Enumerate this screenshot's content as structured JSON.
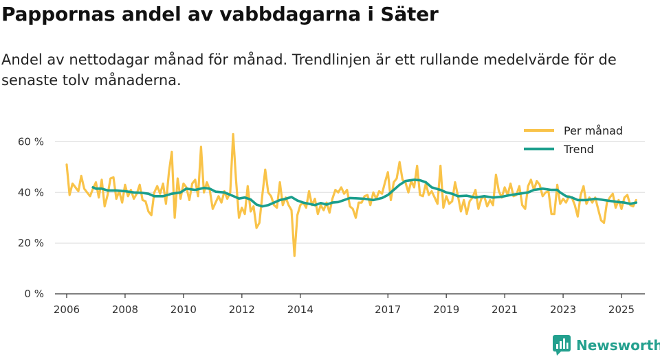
{
  "chart_data": {
    "type": "line",
    "title": "Pappornas andel av vabbdagarna i Säter",
    "subtitle": "Andel av nettodagar månad för månad. Trendlinjen är ett rullande medelvärde för de senaste tolv månaderna.",
    "xlabel": "",
    "ylabel": "",
    "ylim": [
      0,
      65
    ],
    "xlim": [
      2005.6,
      2025.8
    ],
    "y_ticks": [
      0,
      20,
      40,
      60
    ],
    "y_tick_labels": [
      "0 %",
      "20 %",
      "40 %",
      "60 %"
    ],
    "x_ticks": [
      2006,
      2008,
      2010,
      2012,
      2014,
      2017,
      2019,
      2021,
      2023,
      2025
    ],
    "x_tick_labels": [
      "2006",
      "2008",
      "2010",
      "2012",
      "2014",
      "2017",
      "2019",
      "2021",
      "2023",
      "2025"
    ],
    "grid": "horizontal",
    "legend_position": "top-right",
    "series": [
      {
        "name": "Per månad",
        "color": "#f9c349",
        "points": [
          [
            2006.0,
            51
          ],
          [
            2006.1,
            39
          ],
          [
            2006.2,
            43.5
          ],
          [
            2006.3,
            42
          ],
          [
            2006.4,
            40.5
          ],
          [
            2006.5,
            46.5
          ],
          [
            2006.6,
            41.5
          ],
          [
            2006.7,
            40
          ],
          [
            2006.8,
            38.5
          ],
          [
            2006.9,
            41.5
          ],
          [
            2007.0,
            44
          ],
          [
            2007.1,
            38
          ],
          [
            2007.2,
            45
          ],
          [
            2007.3,
            34.5
          ],
          [
            2007.4,
            39
          ],
          [
            2007.5,
            45.5
          ],
          [
            2007.6,
            46
          ],
          [
            2007.7,
            37.5
          ],
          [
            2007.8,
            40.5
          ],
          [
            2007.9,
            36
          ],
          [
            2008.0,
            43
          ],
          [
            2008.1,
            38.5
          ],
          [
            2008.2,
            41
          ],
          [
            2008.3,
            37.5
          ],
          [
            2008.4,
            39.5
          ],
          [
            2008.5,
            43
          ],
          [
            2008.6,
            37
          ],
          [
            2008.7,
            36.5
          ],
          [
            2008.8,
            32.5
          ],
          [
            2008.9,
            31
          ],
          [
            2009.0,
            40
          ],
          [
            2009.1,
            42.5
          ],
          [
            2009.2,
            39.5
          ],
          [
            2009.3,
            43.5
          ],
          [
            2009.4,
            35.5
          ],
          [
            2009.5,
            48
          ],
          [
            2009.6,
            56
          ],
          [
            2009.7,
            30
          ],
          [
            2009.8,
            45.5
          ],
          [
            2009.9,
            37.5
          ],
          [
            2010.0,
            43.5
          ],
          [
            2010.1,
            42
          ],
          [
            2010.2,
            37
          ],
          [
            2010.3,
            43.5
          ],
          [
            2010.4,
            45
          ],
          [
            2010.5,
            38.5
          ],
          [
            2010.6,
            58
          ],
          [
            2010.7,
            40
          ],
          [
            2010.8,
            44
          ],
          [
            2010.9,
            41
          ],
          [
            2011.0,
            33.5
          ],
          [
            2011.1,
            36
          ],
          [
            2011.2,
            38.5
          ],
          [
            2011.3,
            36
          ],
          [
            2011.4,
            40.5
          ],
          [
            2011.5,
            37.5
          ],
          [
            2011.6,
            40
          ],
          [
            2011.7,
            63
          ],
          [
            2011.8,
            45
          ],
          [
            2011.9,
            30
          ],
          [
            2012.0,
            34
          ],
          [
            2012.1,
            31.5
          ],
          [
            2012.2,
            42.5
          ],
          [
            2012.3,
            32.5
          ],
          [
            2012.4,
            34.5
          ],
          [
            2012.5,
            26
          ],
          [
            2012.6,
            28
          ],
          [
            2012.7,
            39
          ],
          [
            2012.8,
            49
          ],
          [
            2012.9,
            40
          ],
          [
            2013.0,
            38.5
          ],
          [
            2013.1,
            35
          ],
          [
            2013.2,
            34
          ],
          [
            2013.3,
            44
          ],
          [
            2013.4,
            35
          ],
          [
            2013.5,
            38
          ],
          [
            2013.6,
            35
          ],
          [
            2013.7,
            33
          ],
          [
            2013.8,
            15
          ],
          [
            2013.9,
            31
          ],
          [
            2014.0,
            35
          ],
          [
            2014.1,
            36
          ],
          [
            2014.2,
            34
          ],
          [
            2014.3,
            40.5
          ],
          [
            2014.4,
            35
          ],
          [
            2014.5,
            37.5
          ],
          [
            2014.6,
            31.5
          ],
          [
            2014.7,
            35
          ],
          [
            2014.8,
            33
          ],
          [
            2014.9,
            36
          ],
          [
            2015.0,
            32
          ],
          [
            2015.1,
            37.5
          ],
          [
            2015.2,
            41
          ],
          [
            2015.3,
            40
          ],
          [
            2015.4,
            42
          ],
          [
            2015.5,
            39.5
          ],
          [
            2015.6,
            41
          ],
          [
            2015.7,
            34.5
          ],
          [
            2015.8,
            33.5
          ],
          [
            2015.9,
            30
          ],
          [
            2016.0,
            36
          ],
          [
            2016.1,
            36
          ],
          [
            2016.2,
            38.5
          ],
          [
            2016.3,
            39
          ],
          [
            2016.4,
            35
          ],
          [
            2016.5,
            40
          ],
          [
            2016.6,
            37.5
          ],
          [
            2016.7,
            40.5
          ],
          [
            2016.8,
            39.5
          ],
          [
            2016.9,
            44
          ],
          [
            2017.0,
            48
          ],
          [
            2017.1,
            37
          ],
          [
            2017.2,
            44
          ],
          [
            2017.3,
            45.5
          ],
          [
            2017.4,
            52
          ],
          [
            2017.5,
            45
          ],
          [
            2017.6,
            44
          ],
          [
            2017.7,
            40
          ],
          [
            2017.8,
            44.5
          ],
          [
            2017.9,
            42
          ],
          [
            2018.0,
            50.5
          ],
          [
            2018.1,
            39
          ],
          [
            2018.2,
            38.5
          ],
          [
            2018.3,
            43.5
          ],
          [
            2018.4,
            39
          ],
          [
            2018.5,
            40.5
          ],
          [
            2018.6,
            38
          ],
          [
            2018.7,
            35.5
          ],
          [
            2018.8,
            50.5
          ],
          [
            2018.9,
            34
          ],
          [
            2019.0,
            38.5
          ],
          [
            2019.1,
            35.5
          ],
          [
            2019.2,
            36.5
          ],
          [
            2019.3,
            44
          ],
          [
            2019.4,
            38.5
          ],
          [
            2019.5,
            32.5
          ],
          [
            2019.6,
            37
          ],
          [
            2019.7,
            31.5
          ],
          [
            2019.8,
            36.5
          ],
          [
            2019.9,
            38
          ],
          [
            2020.0,
            41
          ],
          [
            2020.1,
            33.5
          ],
          [
            2020.2,
            37.5
          ],
          [
            2020.3,
            38.5
          ],
          [
            2020.4,
            34.5
          ],
          [
            2020.5,
            37
          ],
          [
            2020.6,
            35
          ],
          [
            2020.7,
            47
          ],
          [
            2020.8,
            40.5
          ],
          [
            2020.9,
            38
          ],
          [
            2021.0,
            42
          ],
          [
            2021.1,
            39
          ],
          [
            2021.2,
            43.5
          ],
          [
            2021.3,
            38.5
          ],
          [
            2021.4,
            39
          ],
          [
            2021.5,
            42.5
          ],
          [
            2021.6,
            35
          ],
          [
            2021.7,
            33.5
          ],
          [
            2021.8,
            42.5
          ],
          [
            2021.9,
            45
          ],
          [
            2022.0,
            41
          ],
          [
            2022.1,
            44.5
          ],
          [
            2022.2,
            43
          ],
          [
            2022.3,
            38.5
          ],
          [
            2022.4,
            40
          ],
          [
            2022.5,
            40.5
          ],
          [
            2022.6,
            31.5
          ],
          [
            2022.7,
            31.5
          ],
          [
            2022.8,
            43
          ],
          [
            2022.9,
            35.5
          ],
          [
            2023.0,
            37.5
          ],
          [
            2023.1,
            36
          ],
          [
            2023.2,
            38.5
          ],
          [
            2023.3,
            38
          ],
          [
            2023.4,
            35
          ],
          [
            2023.5,
            30.5
          ],
          [
            2023.6,
            39
          ],
          [
            2023.7,
            42.5
          ],
          [
            2023.8,
            35.5
          ],
          [
            2023.9,
            38
          ],
          [
            2024.0,
            36
          ],
          [
            2024.1,
            38
          ],
          [
            2024.2,
            33.5
          ],
          [
            2024.3,
            29
          ],
          [
            2024.4,
            28
          ],
          [
            2024.5,
            36
          ],
          [
            2024.6,
            38
          ],
          [
            2024.7,
            39.5
          ],
          [
            2024.8,
            34
          ],
          [
            2024.9,
            37
          ],
          [
            2025.0,
            33.5
          ],
          [
            2025.1,
            38
          ],
          [
            2025.2,
            39
          ],
          [
            2025.3,
            35
          ],
          [
            2025.4,
            34.5
          ],
          [
            2025.5,
            37
          ]
        ]
      },
      {
        "name": "Trend",
        "color": "#1a9e8c",
        "points": [
          [
            2006.9,
            42
          ],
          [
            2007.0,
            41.5
          ],
          [
            2007.2,
            41.5
          ],
          [
            2007.4,
            40.8
          ],
          [
            2007.7,
            40.8
          ],
          [
            2008.0,
            40.5
          ],
          [
            2008.3,
            40
          ],
          [
            2008.6,
            39.8
          ],
          [
            2008.8,
            39.5
          ],
          [
            2009.0,
            38.5
          ],
          [
            2009.3,
            38.5
          ],
          [
            2009.6,
            39.5
          ],
          [
            2009.9,
            40
          ],
          [
            2010.1,
            41.5
          ],
          [
            2010.4,
            41
          ],
          [
            2010.7,
            41.8
          ],
          [
            2010.9,
            41.5
          ],
          [
            2011.1,
            40.3
          ],
          [
            2011.4,
            40
          ],
          [
            2011.7,
            38.6
          ],
          [
            2011.9,
            37.6
          ],
          [
            2012.1,
            38
          ],
          [
            2012.3,
            37.2
          ],
          [
            2012.5,
            35.2
          ],
          [
            2012.7,
            34.5
          ],
          [
            2012.9,
            35
          ],
          [
            2013.1,
            36
          ],
          [
            2013.3,
            37
          ],
          [
            2013.5,
            37.5
          ],
          [
            2013.7,
            38.2
          ],
          [
            2013.9,
            36.8
          ],
          [
            2014.1,
            36
          ],
          [
            2014.3,
            35.5
          ],
          [
            2014.5,
            35
          ],
          [
            2014.7,
            35.8
          ],
          [
            2014.9,
            35.2
          ],
          [
            2015.1,
            36
          ],
          [
            2015.3,
            36.2
          ],
          [
            2015.5,
            37
          ],
          [
            2015.7,
            37.8
          ],
          [
            2015.9,
            37.7
          ],
          [
            2016.2,
            37.5
          ],
          [
            2016.5,
            37
          ],
          [
            2016.8,
            37.8
          ],
          [
            2017.0,
            39
          ],
          [
            2017.2,
            41
          ],
          [
            2017.4,
            43
          ],
          [
            2017.6,
            44.5
          ],
          [
            2017.9,
            45
          ],
          [
            2018.1,
            44.8
          ],
          [
            2018.3,
            44
          ],
          [
            2018.5,
            42
          ],
          [
            2018.8,
            41
          ],
          [
            2019.0,
            40
          ],
          [
            2019.2,
            39.5
          ],
          [
            2019.4,
            38.5
          ],
          [
            2019.7,
            38.7
          ],
          [
            2020.0,
            38
          ],
          [
            2020.3,
            38.5
          ],
          [
            2020.6,
            38
          ],
          [
            2020.9,
            38.3
          ],
          [
            2021.2,
            39
          ],
          [
            2021.5,
            39.5
          ],
          [
            2021.8,
            40
          ],
          [
            2022.0,
            41
          ],
          [
            2022.3,
            41.5
          ],
          [
            2022.6,
            41
          ],
          [
            2022.8,
            41
          ],
          [
            2022.9,
            40
          ],
          [
            2023.1,
            38.5
          ],
          [
            2023.3,
            38
          ],
          [
            2023.5,
            37
          ],
          [
            2023.8,
            37
          ],
          [
            2024.1,
            37.5
          ],
          [
            2024.4,
            37
          ],
          [
            2024.7,
            36.5
          ],
          [
            2024.9,
            36.2
          ],
          [
            2025.1,
            36
          ],
          [
            2025.3,
            35.5
          ],
          [
            2025.5,
            36
          ]
        ]
      }
    ]
  },
  "brand": {
    "name": "Newsworthy",
    "icon": "bar-chart-bubble-icon",
    "color": "#23a08e"
  },
  "style": {
    "grid_color": "#dddddd",
    "axis_color": "#333333",
    "background": "#ffffff"
  }
}
